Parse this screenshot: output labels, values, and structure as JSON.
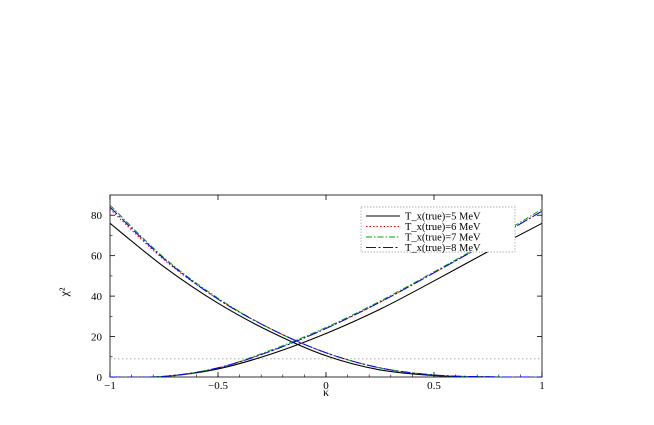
{
  "chart_data": {
    "type": "line",
    "xlabel": "κ",
    "ylabel": "χ²",
    "xlim": [
      -1,
      1
    ],
    "ylim": [
      0,
      90
    ],
    "xticks": [
      -1,
      -0.5,
      0,
      0.5,
      1
    ],
    "xtick_labels": [
      "−1",
      "−0.5",
      "0",
      "0.5",
      "1"
    ],
    "yticks": [
      0,
      20,
      40,
      60,
      80
    ],
    "ytick_labels": [
      "0",
      "20",
      "40",
      "60",
      "80"
    ],
    "legend_position": "top-right",
    "reference_line": {
      "y": 9,
      "style": "dotted",
      "color": "#999999"
    },
    "series": [
      {
        "name": "T_x(true)=5 MeV",
        "color": "#000000",
        "dash": "solid",
        "x": [
          -1,
          -0.75,
          -0.5,
          -0.25,
          0,
          0.25,
          0.5,
          0.75,
          1
        ],
        "values_decreasing": [
          76,
          54.5,
          36.5,
          22,
          10.5,
          3.5,
          0.7,
          0.05,
          0
        ],
        "values_increasing": [
          0,
          0.3,
          4,
          11.5,
          21.5,
          33.5,
          47.5,
          62,
          76
        ]
      },
      {
        "name": "T_x(true)=6 MeV",
        "color": "#ff0000",
        "dash": "dotted",
        "x": [
          -1,
          -0.75,
          -0.5,
          -0.25,
          0,
          0.25,
          0.5,
          0.75,
          1
        ],
        "values_decreasing": [
          83,
          58,
          38.5,
          23.5,
          12,
          4.5,
          1,
          0.1,
          0
        ],
        "values_increasing": [
          0,
          0.3,
          4.5,
          13,
          24,
          37,
          51.5,
          66.5,
          82
        ]
      },
      {
        "name": "T_x(true)=7 MeV",
        "color": "#00aa00",
        "dash": "dashdot",
        "x": [
          -1,
          -0.75,
          -0.5,
          -0.25,
          0,
          0.25,
          0.5,
          0.75,
          1
        ],
        "values_decreasing": [
          85,
          59,
          39,
          23.5,
          12,
          4.5,
          1,
          0.1,
          0
        ],
        "values_increasing": [
          0,
          0.3,
          4.5,
          13.5,
          24.5,
          37.5,
          52,
          67,
          83
        ]
      },
      {
        "name": "T_x(true)=8 MeV",
        "color": "#0000ff",
        "dash": "longdashdot",
        "x": [
          -1,
          -0.75,
          -0.5,
          -0.25,
          0,
          0.25,
          0.5,
          0.75,
          1
        ],
        "values_decreasing": [
          84,
          58.5,
          38.5,
          23.5,
          12,
          4.5,
          1,
          0.1,
          0
        ],
        "values_increasing": [
          0,
          0.3,
          4.5,
          13,
          24,
          37,
          51.5,
          66.5,
          82
        ]
      }
    ]
  }
}
